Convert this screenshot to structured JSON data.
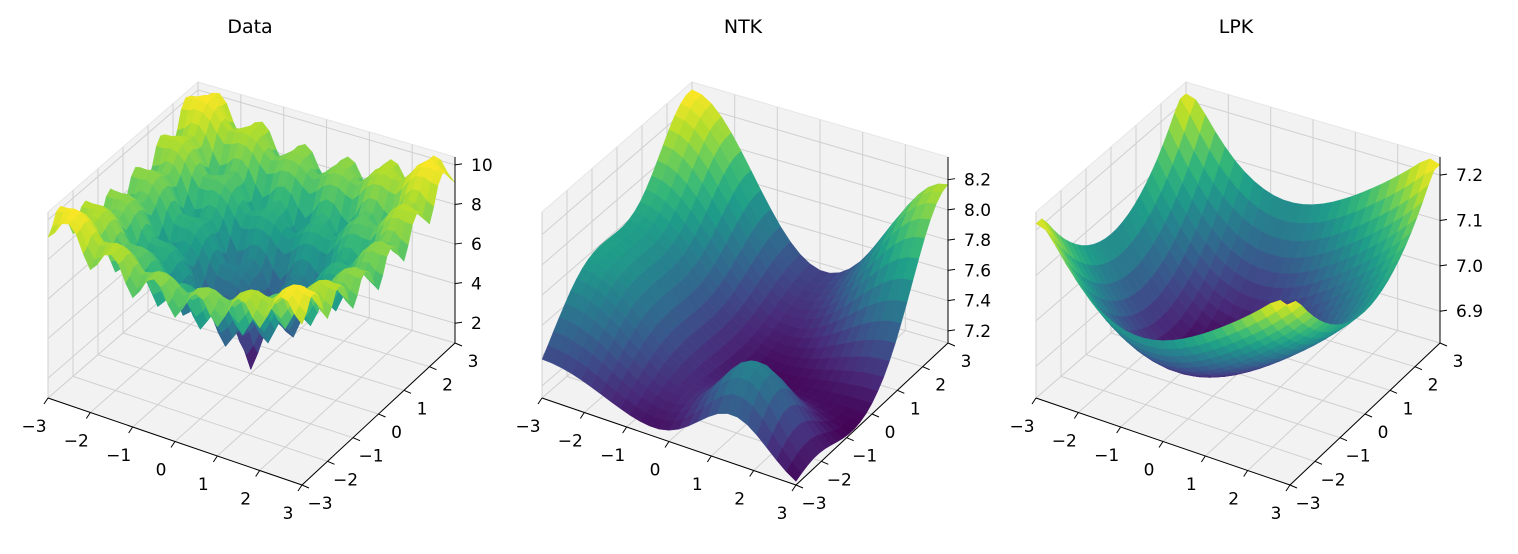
{
  "chart_data": [
    {
      "type": "surface3d",
      "title": "Data",
      "colormap": "viridis",
      "xlim": [
        -3,
        3
      ],
      "ylim": [
        -3,
        3
      ],
      "zlim": [
        1,
        10.4
      ],
      "x_ticks": [
        "−3",
        "−2",
        "−1",
        "0",
        "1",
        "2",
        "3"
      ],
      "y_ticks": [
        "−3",
        "−2",
        "−1",
        "0",
        "1",
        "2",
        "3"
      ],
      "z_ticks": [
        {
          "value": 2,
          "label": "2"
        },
        {
          "value": 4,
          "label": "4"
        },
        {
          "value": 6,
          "label": "6"
        },
        {
          "value": 8,
          "label": "8"
        },
        {
          "value": 10,
          "label": "10"
        }
      ],
      "surface": "ackley-like: z = 20 - 20*exp(-0.2*sqrt(0.5*(x^2+y^2))) + e - exp(0.5*(cos(2*pi*x)+cos(2*pi*y))), scaled",
      "z_min": 1.2,
      "z_max": 10.3,
      "grid": true
    },
    {
      "type": "surface3d",
      "title": "NTK",
      "colormap": "viridis",
      "xlim": [
        -3,
        3
      ],
      "ylim": [
        -3,
        3
      ],
      "zlim": [
        7.12,
        8.35
      ],
      "x_ticks": [
        "−3",
        "−2",
        "−1",
        "0",
        "1",
        "2",
        "3"
      ],
      "y_ticks": [
        "−3",
        "−2",
        "−1",
        "0",
        "1",
        "2",
        "3"
      ],
      "z_ticks": [
        {
          "value": 7.2,
          "label": "7.2"
        },
        {
          "value": 7.4,
          "label": "7.4"
        },
        {
          "value": 7.6,
          "label": "7.6"
        },
        {
          "value": 7.8,
          "label": "7.8"
        },
        {
          "value": 8.0,
          "label": "8.0"
        },
        {
          "value": 8.2,
          "label": "8.2"
        }
      ],
      "z_min": 7.13,
      "z_max": 8.3,
      "grid": true
    },
    {
      "type": "surface3d",
      "title": "LPK",
      "colormap": "viridis",
      "xlim": [
        -3,
        3
      ],
      "ylim": [
        -3,
        3
      ],
      "zlim": [
        6.83,
        7.24
      ],
      "x_ticks": [
        "−3",
        "−2",
        "−1",
        "0",
        "1",
        "2",
        "3"
      ],
      "y_ticks": [
        "−3",
        "−2",
        "−1",
        "0",
        "1",
        "2",
        "3"
      ],
      "z_ticks": [
        {
          "value": 6.9,
          "label": "6.9"
        },
        {
          "value": 7.0,
          "label": "7.0"
        },
        {
          "value": 7.1,
          "label": "7.1"
        },
        {
          "value": 7.2,
          "label": "7.2"
        }
      ],
      "z_min": 6.84,
      "z_max": 7.23,
      "grid": true
    }
  ]
}
